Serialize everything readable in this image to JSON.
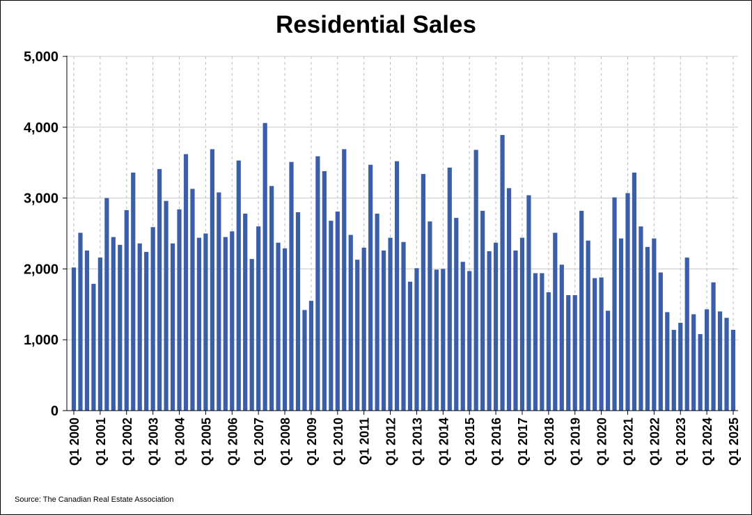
{
  "chart_data": {
    "type": "bar",
    "title": "Residential Sales",
    "xlabel": "",
    "ylabel": "",
    "ylim": [
      0,
      5000
    ],
    "yticks": [
      0,
      1000,
      2000,
      3000,
      4000,
      5000
    ],
    "ytick_labels": [
      "0",
      "1,000",
      "2,000",
      "3,000",
      "4,000",
      "5,000"
    ],
    "xtick_labels": [
      "Q1 2000",
      "Q1 2001",
      "Q1 2002",
      "Q1 2003",
      "Q1 2004",
      "Q1 2005",
      "Q1 2006",
      "Q1 2007",
      "Q1 2008",
      "Q1 2009",
      "Q1 2010",
      "Q1 2011",
      "Q1 2012",
      "Q1 2013",
      "Q1 2014",
      "Q1 2015",
      "Q1 2016",
      "Q1 2017",
      "Q1 2018",
      "Q1 2019",
      "Q1 2020",
      "Q1 2021",
      "Q1 2022",
      "Q1 2023",
      "Q1 2024",
      "Q1 2025"
    ],
    "bar_color": "#3a5fa8",
    "grid": true,
    "legend": "none",
    "values": [
      2020,
      2510,
      2260,
      1790,
      2160,
      3000,
      2450,
      2340,
      2830,
      3360,
      2360,
      2240,
      2590,
      3410,
      2960,
      2360,
      2840,
      3620,
      3130,
      2440,
      2500,
      3690,
      3080,
      2450,
      2530,
      3530,
      2780,
      2140,
      2600,
      4060,
      3170,
      2370,
      2290,
      3510,
      2800,
      1420,
      1550,
      3590,
      3380,
      2680,
      2810,
      3690,
      2480,
      2130,
      2300,
      3470,
      2780,
      2260,
      2440,
      3520,
      2380,
      1820,
      2010,
      3340,
      2670,
      1990,
      2000,
      3430,
      2720,
      2100,
      1970,
      3680,
      2820,
      2250,
      2370,
      3890,
      3140,
      2260,
      2440,
      3040,
      1940,
      1940,
      1670,
      2510,
      2060,
      1630,
      1630,
      2820,
      2400,
      1870,
      1880,
      1410,
      3010,
      2430,
      3070,
      3360,
      2600,
      2310,
      2430,
      1950,
      1390,
      1140,
      1240,
      2160,
      1360,
      1080,
      1430,
      1810,
      1400,
      1310,
      1140
    ]
  },
  "source": "Source: The Canadian Real Estate Association"
}
